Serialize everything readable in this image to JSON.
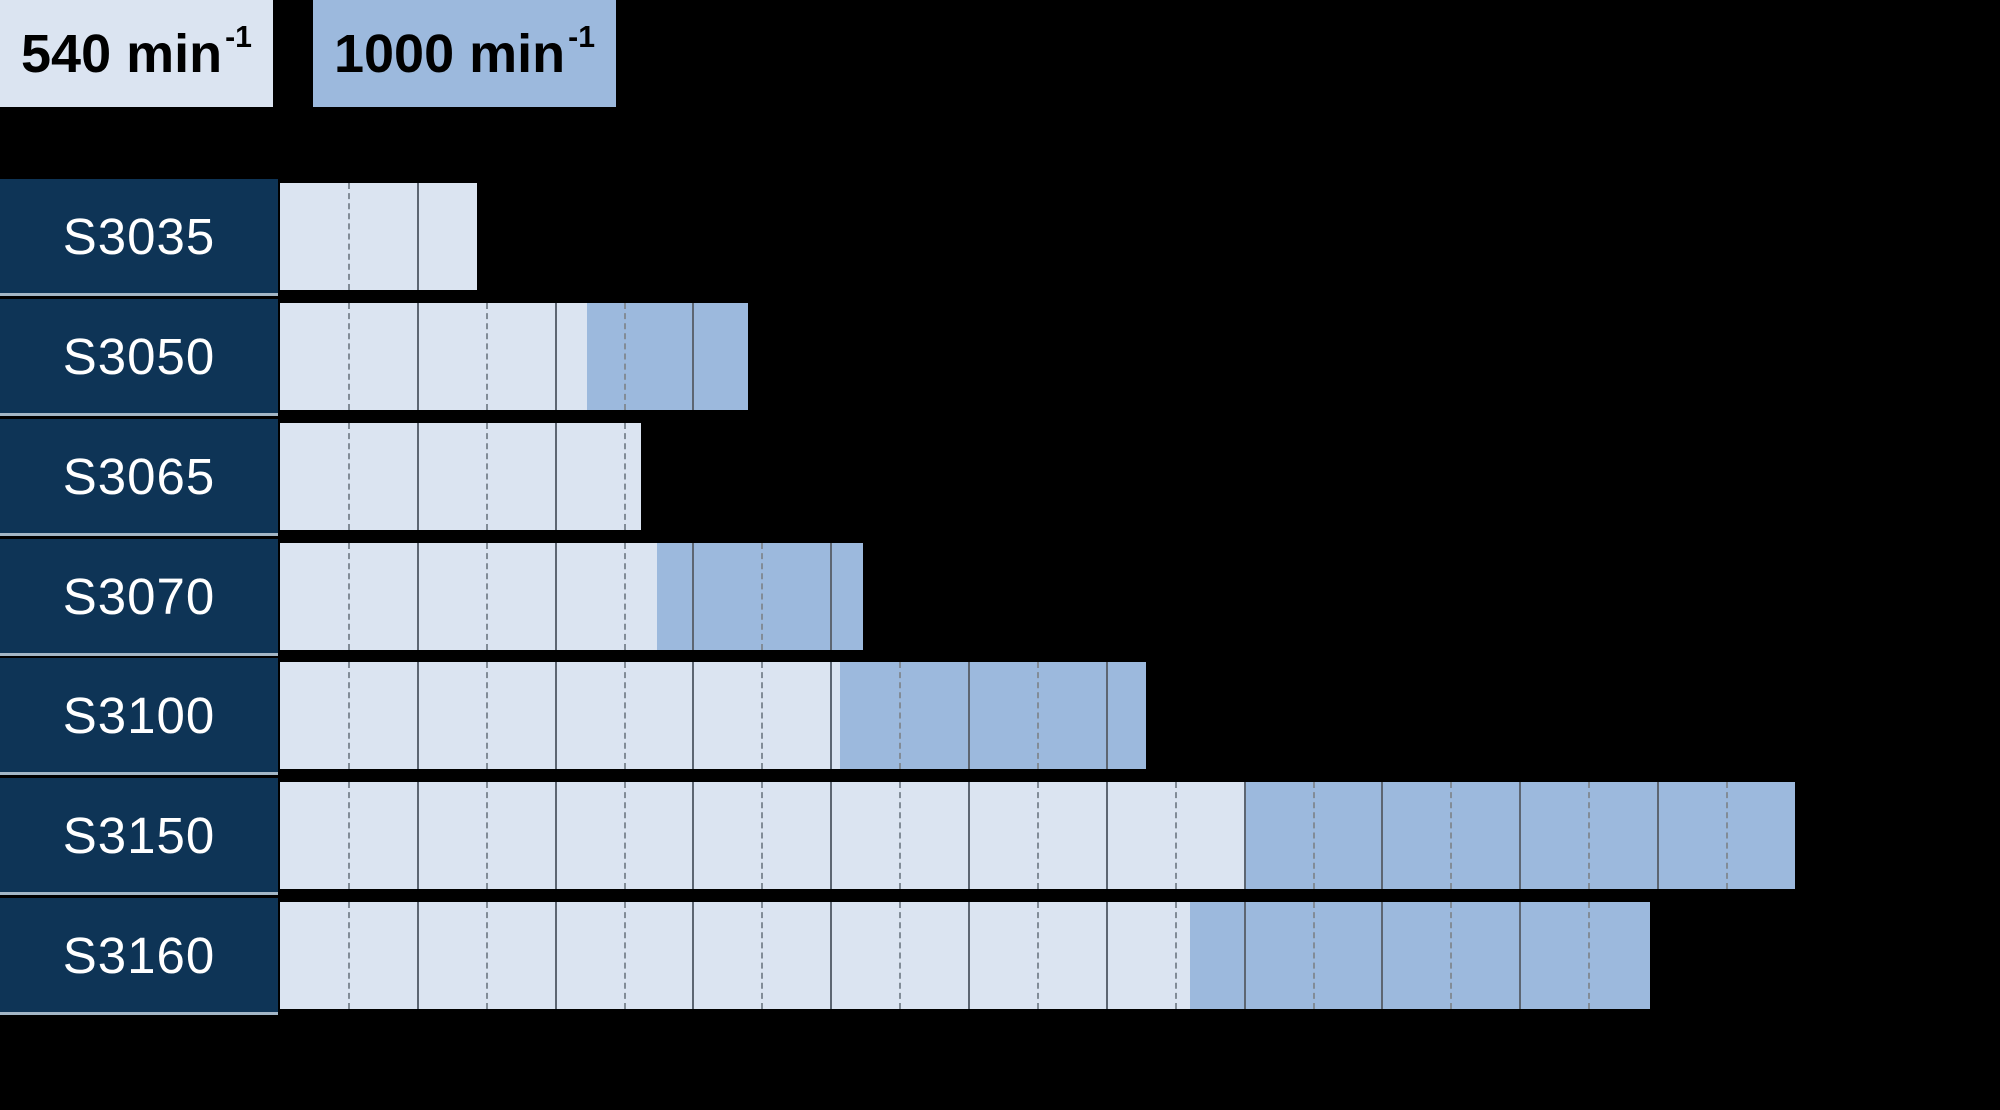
{
  "page": {
    "background_color": "#000000"
  },
  "legend": {
    "items": [
      {
        "value": "540 min",
        "exponent": "-1",
        "swatch_color": "#dbe4f1",
        "text_color": "#000000"
      },
      {
        "value": "1000 min",
        "exponent": "-1",
        "swatch_color": "#9cb9dd",
        "text_color": "#000000"
      }
    ]
  },
  "chart_data": {
    "type": "bar",
    "orientation": "horizontal",
    "title": "",
    "categories": [
      "S3035",
      "S3050",
      "S3065",
      "S3070",
      "S3100",
      "S3150",
      "S3160"
    ],
    "series": [
      {
        "name": "540 min⁻¹",
        "color": "#dbe4f1",
        "end_divisions": [
          1.44,
          2.235,
          2.63,
          2.74,
          4.07,
          7.0,
          6.61
        ]
      },
      {
        "name": "1000 min⁻¹",
        "color": "#9cb9dd",
        "end_divisions": [
          null,
          3.4,
          null,
          4.24,
          6.29,
          11.0,
          9.95
        ]
      }
    ],
    "x_axis": {
      "tick_labels_visible": false,
      "range_divisions": [
        0,
        12.5
      ],
      "major_gridline_every_divisions": 1,
      "minor_gridline_every_divisions": 0.5,
      "major_gridline_style": "solid",
      "minor_gridline_style": "dashed",
      "gridlines_visible_only_inside_bars": true
    },
    "category_label_style": {
      "background_color": "#0e3456",
      "text_color": "#ffffff",
      "separator_color": "#a3b6c6"
    },
    "gridline_colors": {
      "solid": "#5d6672",
      "dashed": "#828c97"
    }
  }
}
